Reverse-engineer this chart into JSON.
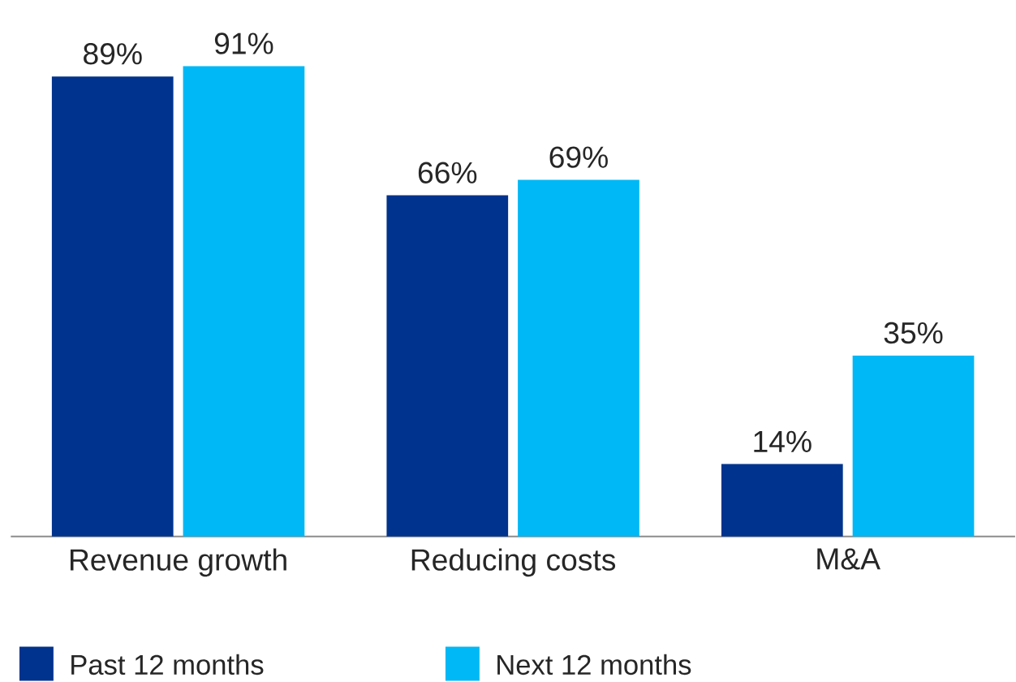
{
  "chart_data": {
    "type": "bar",
    "categories": [
      "Revenue growth",
      "Reducing costs",
      "M&A"
    ],
    "series": [
      {
        "name": "Past 12 months",
        "color": "#00338d",
        "values": [
          89,
          66,
          14
        ],
        "value_labels": [
          "89%",
          "66%",
          "14%"
        ]
      },
      {
        "name": "Next 12 months",
        "color": "#00b8f5",
        "values": [
          91,
          69,
          35
        ],
        "value_labels": [
          "91%",
          "69%",
          "35%"
        ]
      }
    ],
    "legend": "bottom",
    "grid": false
  }
}
